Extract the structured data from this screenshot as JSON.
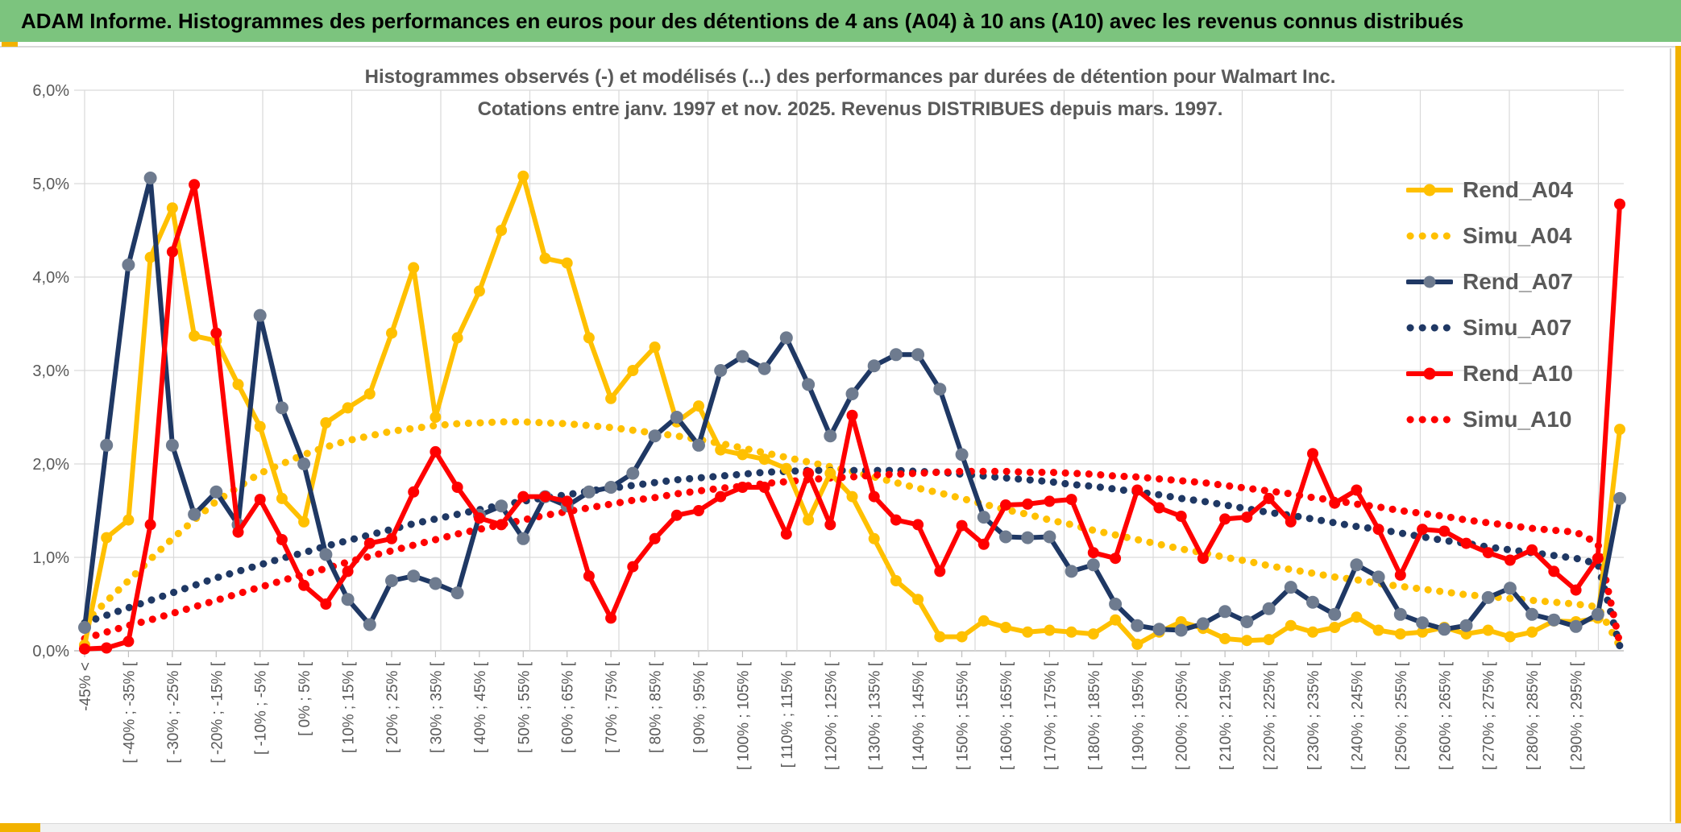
{
  "app": {
    "title": "ADAM Informe. Histogrammes des performances en euros pour des détentions de 4 ans (A04) à 10 ans (A10) avec les revenus connus distribués"
  },
  "colors": {
    "header_bg": "#7CC47E",
    "accent_gold": "#F2B200",
    "grid": "#D9D9D9",
    "axis": "#BFBFBF",
    "text_gray": "#595959",
    "bottom_bar_bg": "#F1F1F1",
    "rend_a04": "#FFC000",
    "rend_a07": "#1F3864",
    "rend_a10": "#FF0000",
    "a07_marker": "#6E7B8F"
  },
  "chart_data": {
    "type": "line",
    "title_line1": "Histogrammes observés (-) et modélisés (...) des performances par durées de détention pour Walmart Inc.",
    "title_line2": "Cotations entre janv. 1997 et nov. 2025. Revenus DISTRIBUES depuis mars. 1997.",
    "ylabel": "",
    "xlabel": "",
    "ylim": [
      0,
      6
    ],
    "y_tick_labels": [
      "0,0%",
      "1,0%",
      "2,0%",
      "3,0%",
      "4,0%",
      "5,0%",
      "6,0%"
    ],
    "grid": true,
    "legend_position": "right-inside-top",
    "num_points": 71,
    "x_label_step": 2,
    "x_tick_labels": [
      "-45% <",
      "[ -40% ; -35% [",
      "[ -30% ; -25% [",
      "[ -20% ; -15% [",
      "[ -10% ; -5% [",
      "[ 0% ; 5% [",
      "[ 10% ; 15% [",
      "[ 20% ; 25% [",
      "[ 30% ; 35% [",
      "[ 40% ; 45% [",
      "[ 50% ; 55% [",
      "[ 60% ; 65% [",
      "[ 70% ; 75% [",
      "[ 80% ; 85% [",
      "[ 90% ; 95% [",
      "[ 100% ; 105% [",
      "[ 110% ; 115% [",
      "[ 120% ; 125% [",
      "[ 130% ; 135% [",
      "[ 140% ; 145% [",
      "[ 150% ; 155% [",
      "[ 160% ; 165% [",
      "[ 170% ; 175% [",
      "[ 180% ; 185% [",
      "[ 190% ; 195% [",
      "[ 200% ; 205% [",
      "[ 210% ; 215% [",
      "[ 220% ; 225% [",
      "[ 230% ; 235% [",
      "[ 240% ; 245% [",
      "[ 250% ; 255% [",
      "[ 260% ; 265% [",
      "[ 270% ; 275% [",
      "[ 280% ; 285% [",
      "[ 290% ; 295% ["
    ],
    "series": [
      {
        "name": "Rend_A04",
        "style": "solid",
        "color": "#FFC000",
        "marker_color": "#FFC000",
        "values": [
          0.06,
          1.21,
          1.4,
          4.21,
          4.74,
          3.37,
          3.32,
          2.85,
          2.4,
          1.63,
          1.38,
          2.44,
          2.6,
          2.75,
          3.4,
          4.1,
          2.5,
          3.35,
          3.85,
          4.5,
          5.08,
          4.2,
          4.15,
          3.35,
          2.7,
          3.0,
          3.25,
          2.45,
          2.62,
          2.15,
          2.1,
          2.05,
          1.95,
          1.4,
          1.9,
          1.65,
          1.2,
          0.75,
          0.55,
          0.15,
          0.15,
          0.32,
          0.25,
          0.2,
          0.22,
          0.2,
          0.18,
          0.33,
          0.07,
          0.2,
          0.31,
          0.24,
          0.13,
          0.11,
          0.12,
          0.27,
          0.2,
          0.25,
          0.36,
          0.22,
          0.18,
          0.2,
          0.25,
          0.18,
          0.22,
          0.15,
          0.2,
          0.32,
          0.31,
          0.35,
          2.37
        ]
      },
      {
        "name": "Simu_A04",
        "style": "dotted",
        "color": "#FFC000",
        "marker_color": "#FFC000",
        "values": [
          0.3,
          0.53,
          0.75,
          0.98,
          1.2,
          1.4,
          1.6,
          1.75,
          1.9,
          2.0,
          2.1,
          2.18,
          2.25,
          2.3,
          2.35,
          2.38,
          2.41,
          2.43,
          2.44,
          2.45,
          2.45,
          2.44,
          2.43,
          2.41,
          2.39,
          2.36,
          2.33,
          2.3,
          2.26,
          2.22,
          2.17,
          2.12,
          2.07,
          2.02,
          1.97,
          1.92,
          1.86,
          1.8,
          1.74,
          1.69,
          1.63,
          1.57,
          1.51,
          1.46,
          1.4,
          1.35,
          1.29,
          1.24,
          1.19,
          1.14,
          1.09,
          1.05,
          1.0,
          0.96,
          0.91,
          0.87,
          0.83,
          0.79,
          0.76,
          0.72,
          0.69,
          0.66,
          0.63,
          0.6,
          0.58,
          0.56,
          0.54,
          0.52,
          0.5,
          0.47,
          0.05
        ]
      },
      {
        "name": "Rend_A07",
        "style": "solid",
        "color": "#1F3864",
        "marker_color": "#6E7B8F",
        "values": [
          0.25,
          2.2,
          4.13,
          5.06,
          2.2,
          1.46,
          1.7,
          1.35,
          3.59,
          2.6,
          2.0,
          1.03,
          0.55,
          0.28,
          0.75,
          0.8,
          0.72,
          0.62,
          1.45,
          1.55,
          1.2,
          1.65,
          1.55,
          1.7,
          1.75,
          1.9,
          2.3,
          2.5,
          2.2,
          3.0,
          3.15,
          3.02,
          3.35,
          2.85,
          2.3,
          2.75,
          3.05,
          3.17,
          3.17,
          2.8,
          2.1,
          1.43,
          1.22,
          1.21,
          1.22,
          0.85,
          0.92,
          0.5,
          0.27,
          0.23,
          0.22,
          0.29,
          0.42,
          0.31,
          0.45,
          0.68,
          0.52,
          0.39,
          0.92,
          0.79,
          0.39,
          0.3,
          0.23,
          0.27,
          0.57,
          0.67,
          0.39,
          0.33,
          0.26,
          0.39,
          1.63
        ]
      },
      {
        "name": "Simu_A07",
        "style": "dotted",
        "color": "#1F3864",
        "marker_color": "#1F3864",
        "values": [
          0.3,
          0.38,
          0.46,
          0.54,
          0.62,
          0.7,
          0.78,
          0.85,
          0.92,
          0.99,
          1.05,
          1.12,
          1.18,
          1.24,
          1.3,
          1.36,
          1.41,
          1.46,
          1.51,
          1.56,
          1.6,
          1.64,
          1.67,
          1.71,
          1.74,
          1.77,
          1.8,
          1.83,
          1.85,
          1.87,
          1.89,
          1.91,
          1.92,
          1.93,
          1.93,
          1.93,
          1.93,
          1.93,
          1.92,
          1.91,
          1.89,
          1.87,
          1.85,
          1.83,
          1.81,
          1.78,
          1.76,
          1.73,
          1.7,
          1.67,
          1.63,
          1.6,
          1.56,
          1.52,
          1.48,
          1.45,
          1.41,
          1.37,
          1.33,
          1.3,
          1.26,
          1.22,
          1.18,
          1.15,
          1.11,
          1.08,
          1.05,
          1.02,
          0.99,
          0.93,
          0.05
        ]
      },
      {
        "name": "Rend_A10",
        "style": "solid",
        "color": "#FF0000",
        "marker_color": "#FF0000",
        "values": [
          0.02,
          0.03,
          0.1,
          1.35,
          4.27,
          4.99,
          3.4,
          1.27,
          1.62,
          1.19,
          0.7,
          0.5,
          0.85,
          1.15,
          1.2,
          1.7,
          2.13,
          1.75,
          1.42,
          1.35,
          1.65,
          1.65,
          1.6,
          0.8,
          0.35,
          0.9,
          1.2,
          1.45,
          1.5,
          1.65,
          1.75,
          1.75,
          1.25,
          1.9,
          1.35,
          2.52,
          1.65,
          1.4,
          1.35,
          0.85,
          1.34,
          1.14,
          1.56,
          1.57,
          1.6,
          1.62,
          1.05,
          0.99,
          1.72,
          1.53,
          1.44,
          0.99,
          1.41,
          1.43,
          1.63,
          1.38,
          2.11,
          1.58,
          1.72,
          1.3,
          0.81,
          1.3,
          1.28,
          1.15,
          1.05,
          0.97,
          1.08,
          0.85,
          0.65,
          0.99,
          4.78
        ]
      },
      {
        "name": "Simu_A10",
        "style": "dotted",
        "color": "#FF0000",
        "marker_color": "#FF0000",
        "values": [
          0.13,
          0.2,
          0.27,
          0.33,
          0.4,
          0.47,
          0.54,
          0.61,
          0.68,
          0.75,
          0.82,
          0.88,
          0.95,
          1.01,
          1.07,
          1.13,
          1.19,
          1.25,
          1.3,
          1.35,
          1.4,
          1.45,
          1.49,
          1.53,
          1.57,
          1.61,
          1.64,
          1.68,
          1.71,
          1.74,
          1.76,
          1.79,
          1.81,
          1.83,
          1.85,
          1.86,
          1.88,
          1.89,
          1.9,
          1.91,
          1.92,
          1.92,
          1.92,
          1.91,
          1.91,
          1.9,
          1.89,
          1.87,
          1.86,
          1.84,
          1.82,
          1.8,
          1.77,
          1.74,
          1.71,
          1.68,
          1.64,
          1.61,
          1.57,
          1.54,
          1.5,
          1.47,
          1.44,
          1.4,
          1.37,
          1.34,
          1.31,
          1.29,
          1.27,
          1.15,
          0.08
        ]
      }
    ],
    "legend": [
      "Rend_A04",
      "Simu_A04",
      "Rend_A07",
      "Simu_A07",
      "Rend_A10",
      "Simu_A10"
    ]
  }
}
